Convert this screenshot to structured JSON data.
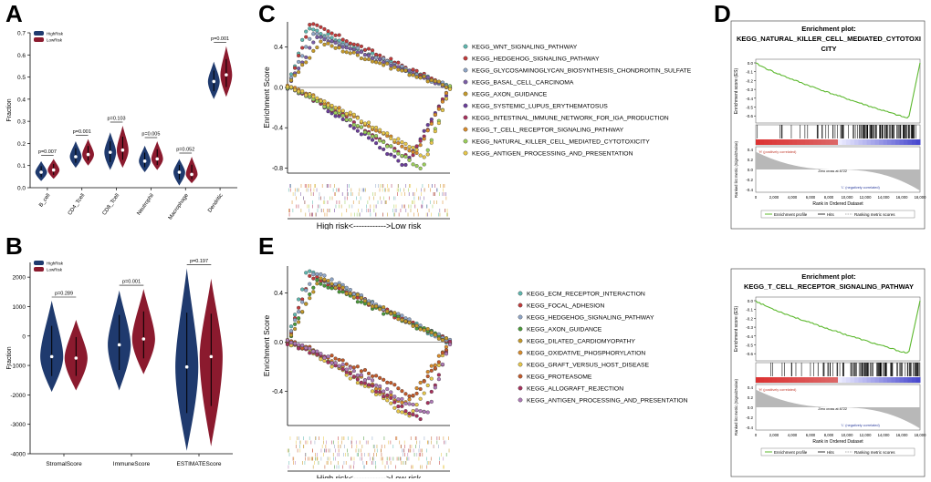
{
  "panel_labels": {
    "A": "A",
    "B": "B",
    "C": "C",
    "D": "D",
    "E": "E"
  },
  "colors": {
    "high": "#1f3a6e",
    "low": "#8b1a2e"
  },
  "chart_data": [
    {
      "id": "A",
      "type": "violin",
      "ylabel": "Fraction",
      "legend": [
        "HighRisk",
        "LowRisk"
      ],
      "categories": [
        "B_cell",
        "CD4_Tcell",
        "CD8_Tcell",
        "Neutrophil",
        "Macrophage",
        "Dendritic"
      ],
      "ylim": [
        0,
        0.7
      ],
      "yticks": [
        0.0,
        0.1,
        0.2,
        0.3,
        0.4,
        0.5,
        0.6,
        0.7
      ],
      "pvalues": [
        "p=0.007",
        "p=0.001",
        "p=0.103",
        "p=0.005",
        "p=0.052",
        "p=0.001"
      ],
      "series": [
        {
          "name": "HighRisk",
          "median": [
            0.07,
            0.14,
            0.16,
            0.12,
            0.07,
            0.48
          ],
          "min": [
            0.03,
            0.09,
            0.08,
            0.07,
            0.01,
            0.4
          ],
          "max": [
            0.12,
            0.21,
            0.25,
            0.19,
            0.13,
            0.57
          ]
        },
        {
          "name": "LowRisk",
          "median": [
            0.08,
            0.15,
            0.17,
            0.13,
            0.06,
            0.51
          ],
          "min": [
            0.04,
            0.1,
            0.09,
            0.08,
            0.02,
            0.41
          ],
          "max": [
            0.13,
            0.22,
            0.28,
            0.21,
            0.14,
            0.64
          ]
        }
      ]
    },
    {
      "id": "B",
      "type": "violin",
      "ylabel": "Fraction",
      "legend": [
        "HighRisk",
        "LowRisk"
      ],
      "categories": [
        "StromalScore",
        "ImmuneScore",
        "ESTIMATEScore"
      ],
      "ylim": [
        -4000,
        2500
      ],
      "yticks": [
        -4000,
        -3000,
        -2000,
        -1000,
        0,
        1000,
        2000
      ],
      "pvalues": [
        "p=0.289",
        "p=0.001",
        "p=0.197"
      ],
      "series": [
        {
          "name": "HighRisk",
          "median": [
            -700,
            -300,
            -1050
          ],
          "min": [
            -1900,
            -1850,
            -3900
          ],
          "max": [
            1200,
            1550,
            2300
          ]
        },
        {
          "name": "LowRisk",
          "median": [
            -750,
            -100,
            -700
          ],
          "min": [
            -1850,
            -1300,
            -3750
          ],
          "max": [
            550,
            1600,
            1950
          ]
        }
      ]
    },
    {
      "id": "C",
      "type": "line",
      "ylabel": "Enrichment Score",
      "xlabel": "High risk<------------>Low risk",
      "ylim": [
        -0.85,
        0.65
      ],
      "yticks": [
        -0.8,
        -0.4,
        0.0,
        0.4
      ],
      "series": [
        {
          "name": "KEGG_WNT_SIGNALING_PATHWAY",
          "color": "#5fb8b0",
          "sign": 1,
          "peak": 0.6
        },
        {
          "name": "KEGG_HEDGEHOG_SIGNALING_PATHWAY",
          "color": "#c23b3b",
          "sign": 1,
          "peak": 0.63
        },
        {
          "name": "KEGG_GLYCOSAMINOGLYCAN_BIOSYNTHESIS_CHONDROITIN_SULFATE",
          "color": "#8fa6c8",
          "sign": 1,
          "peak": 0.55
        },
        {
          "name": "KEGG_BASAL_CELL_CARCINOMA",
          "color": "#7b5ea7",
          "sign": 1,
          "peak": 0.5
        },
        {
          "name": "KEGG_AXON_GUIDANCE",
          "color": "#c59a2a",
          "sign": 1,
          "peak": 0.45
        },
        {
          "name": "KEGG_SYSTEMIC_LUPUS_ERYTHEMATOSUS",
          "color": "#6a3d9a",
          "sign": -1,
          "peak": -0.78
        },
        {
          "name": "KEGG_INTESTINAL_IMMUNE_NETWORK_FOR_IGA_PRODUCTION",
          "color": "#a8325e",
          "sign": -1,
          "peak": -0.72
        },
        {
          "name": "KEGG_T_CELL_RECEPTOR_SIGNALING_PATHWAY",
          "color": "#d98c2b",
          "sign": -1,
          "peak": -0.65
        },
        {
          "name": "KEGG_NATURAL_KILLER_CELL_MEDIATED_CYTOTOXICITY",
          "color": "#9ccf5a",
          "sign": -1,
          "peak": -0.82
        },
        {
          "name": "KEGG_ANTIGEN_PROCESSING_AND_PRESENTATION",
          "color": "#e8c84a",
          "sign": -1,
          "peak": -0.7
        }
      ]
    },
    {
      "id": "E",
      "type": "line",
      "ylabel": "Enrichment Score",
      "xlabel": "High risk<------------>Low risk",
      "ylim": [
        -0.68,
        0.62
      ],
      "yticks": [
        -0.4,
        0.0,
        0.4
      ],
      "series": [
        {
          "name": "KEGG_ECM_RECEPTOR_INTERACTION",
          "color": "#5fb8b0",
          "sign": 1,
          "peak": 0.58
        },
        {
          "name": "KEGG_FOCAL_ADHESION",
          "color": "#c23b3b",
          "sign": 1,
          "peak": 0.55
        },
        {
          "name": "KEGG_HEDGEHOG_SIGNALING_PATHWAY",
          "color": "#8fa6c8",
          "sign": 1,
          "peak": 0.57
        },
        {
          "name": "KEGG_AXON_GUIDANCE",
          "color": "#4a9a3a",
          "sign": 1,
          "peak": 0.5
        },
        {
          "name": "KEGG_DILATED_CARDIOMYOPATHY",
          "color": "#c59a2a",
          "sign": 1,
          "peak": 0.52
        },
        {
          "name": "KEGG_OXIDATIVE_PHOSPHORYLATION",
          "color": "#d98c2b",
          "sign": -1,
          "peak": -0.52
        },
        {
          "name": "KEGG_GRAFT_VERSUS_HOST_DISEASE",
          "color": "#e8c84a",
          "sign": -1,
          "peak": -0.62
        },
        {
          "name": "KEGG_PROTEASOME",
          "color": "#c45a2a",
          "sign": -1,
          "peak": -0.45
        },
        {
          "name": "KEGG_ALLOGRAFT_REJECTION",
          "color": "#a8325e",
          "sign": -1,
          "peak": -0.64
        },
        {
          "name": "KEGG_ANTIGEN_PROCESSING_AND_PRESENTATION",
          "color": "#b07ab8",
          "sign": -1,
          "peak": -0.6
        }
      ]
    },
    {
      "id": "D1",
      "type": "line",
      "title": "Enrichment plot:",
      "subtitle": "KEGG_NATURAL_KILLER_CELL_MEDIATED_CYTOTOXI",
      "subtitle2": "CITY",
      "ylabel": "Enrichment score (ES)",
      "ylabel2": "Ranked list metric (Signal2Noise)",
      "xlabel": "Rank in Ordered Dataset",
      "xticks": [
        "0",
        "2,000",
        "4,000",
        "6,000",
        "8,000",
        "10,000",
        "12,000",
        "14,000",
        "16,000",
        "18,000"
      ],
      "yticks": [
        "0.0",
        "-0.1",
        "-0.2",
        "-0.3",
        "-0.4",
        "-0.5",
        "-0.6"
      ],
      "yticks2": [
        "0.4",
        "0.2",
        "0.0",
        "-0.2",
        "-0.4"
      ],
      "pos_label": "'H' (positively correlated)",
      "neg_label": "'L' (negatively correlated)",
      "zero_label": "Zero cross at 8722",
      "legend": [
        "Enrichment profile",
        "Hits",
        "Ranking metric scores"
      ],
      "min_es": -0.63
    },
    {
      "id": "D2",
      "type": "line",
      "title": "Enrichment plot:",
      "subtitle": "KEGG_T_CELL_RECEPTOR_SIGNALING_PATHWAY",
      "subtitle2": "",
      "ylabel": "Enrichment score (ES)",
      "ylabel2": "Ranked list metric (Signal2Noise)",
      "xlabel": "Rank in Ordered Dataset",
      "xticks": [
        "0",
        "2,000",
        "4,000",
        "6,000",
        "8,000",
        "10,000",
        "12,000",
        "14,000",
        "16,000",
        "18,000"
      ],
      "yticks": [
        "0.0",
        "-0.1",
        "-0.2",
        "-0.3",
        "-0.4",
        "-0.5",
        "-0.6"
      ],
      "yticks2": [
        "0.4",
        "0.2",
        "0.0",
        "-0.2",
        "-0.4"
      ],
      "pos_label": "'H' (positively correlated)",
      "neg_label": "'L' (negatively correlated)",
      "zero_label": "Zero cross at 8722",
      "legend": [
        "Enrichment profile",
        "Hits",
        "Ranking metric scores"
      ],
      "min_es": -0.6
    }
  ]
}
